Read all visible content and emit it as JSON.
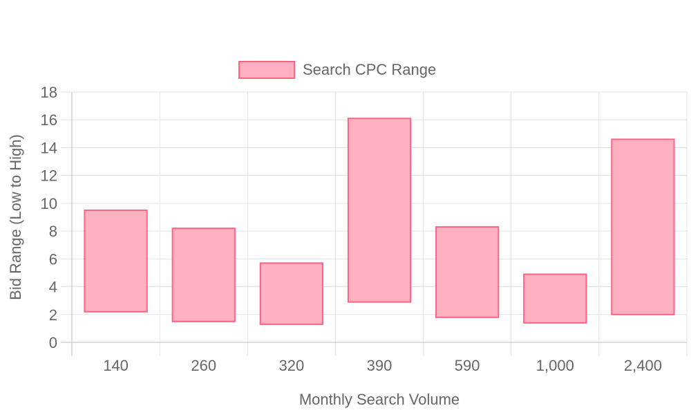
{
  "chart_data": {
    "type": "bar",
    "subtype": "floating-range",
    "categories": [
      "140",
      "260",
      "320",
      "390",
      "590",
      "1,000",
      "2,400"
    ],
    "series": [
      {
        "name": "Search CPC Range",
        "ranges": [
          [
            2.2,
            9.5
          ],
          [
            1.5,
            8.2
          ],
          [
            1.3,
            5.7
          ],
          [
            2.9,
            16.1
          ],
          [
            1.8,
            8.3
          ],
          [
            1.4,
            4.9
          ],
          [
            2.0,
            14.6
          ]
        ],
        "fill_color": "#ffb1c1",
        "border_color": "#ff6384"
      }
    ],
    "xlabel": "Monthly Search Volume",
    "ylabel": "Bid Range (Low to High)",
    "ylim": [
      0,
      18
    ],
    "yticks": [
      0,
      2,
      4,
      6,
      8,
      10,
      12,
      14,
      16,
      18
    ],
    "grid": true,
    "legend_position": "top"
  }
}
